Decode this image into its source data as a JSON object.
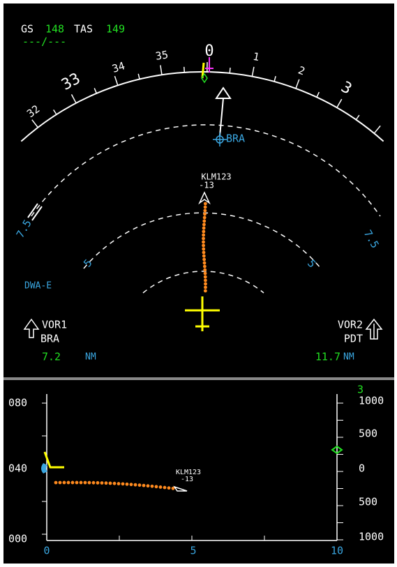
{
  "header": {
    "gs_label": "GS",
    "gs": "148",
    "tas_label": "TAS",
    "tas": "149",
    "wind": "---/---"
  },
  "compass": {
    "labels": [
      "32",
      "33",
      "34",
      "35",
      "0",
      "1",
      "2",
      "3"
    ]
  },
  "waypoint": "BRA",
  "traffic": {
    "callsign": "KLM123",
    "altitude": "-13"
  },
  "range_rings": {
    "outer_left": "7.5",
    "outer_right": "7.5",
    "inner_left": "5",
    "inner_right": "5"
  },
  "fix": "DWA-E",
  "vor1": {
    "label": "VOR1",
    "id": "BRA",
    "distance": "7.2",
    "unit": "NM"
  },
  "vor2": {
    "label": "VOR2",
    "id": "PDT",
    "distance": "11.7",
    "unit": "NM"
  },
  "vertical": {
    "left_axis": [
      "080",
      "040",
      "000"
    ],
    "right_axis": [
      "1000",
      "500",
      "0",
      "500",
      "1000"
    ],
    "scale_marker": "3",
    "x_axis": [
      "0",
      "5",
      "10"
    ],
    "traffic": {
      "callsign": "KLM123",
      "altitude": "-13"
    }
  }
}
